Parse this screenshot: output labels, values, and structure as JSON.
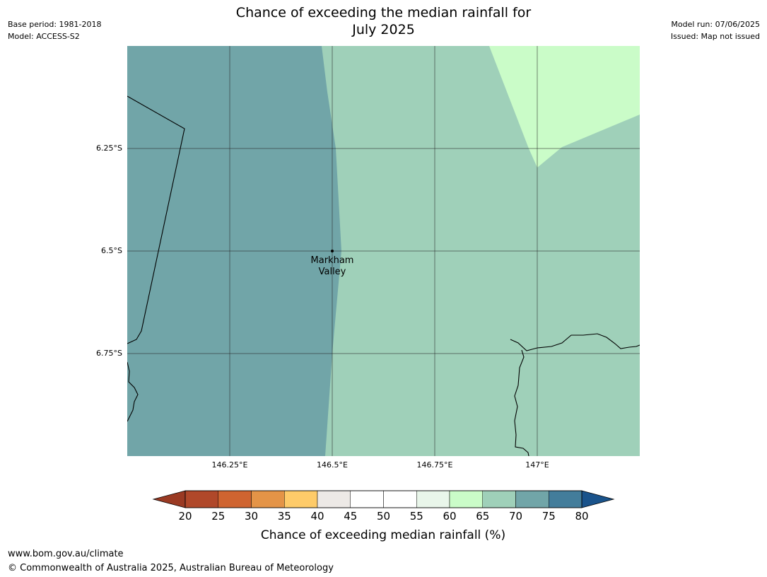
{
  "header": {
    "title_line1": "Chance of exceeding the median rainfall for",
    "title_line2": "July 2025",
    "base_period": "Base period: 1981-2018",
    "model": "Model: ACCESS-S2",
    "model_run": "Model run: 07/06/2025",
    "issued": "Issued: Map not issued"
  },
  "map": {
    "lat_labels": [
      "6.25°S",
      "6.5°S",
      "6.75°S"
    ],
    "lon_labels": [
      "146.25°E",
      "146.5°E",
      "146.75°E",
      "147°E"
    ],
    "place": {
      "name_line1": "Markham",
      "name_line2": "Valley"
    },
    "zone_colors": {
      "band_70_75": "#71a5a8",
      "band_65_70": "#9fd0b9",
      "band_60_65": "#cafcc8"
    }
  },
  "colorbar": {
    "label": "Chance of exceeding median rainfall (%)",
    "ticks": [
      "20",
      "25",
      "30",
      "35",
      "40",
      "45",
      "50",
      "55",
      "60",
      "65",
      "70",
      "75",
      "80"
    ],
    "colors": [
      "#b0482a",
      "#cf6430",
      "#e49447",
      "#fecb69",
      "#ede9e6",
      "#ffffff",
      "#ffffff",
      "#e9f6ea",
      "#cafcc8",
      "#9fd0b9",
      "#71a5a8",
      "#437d9b"
    ],
    "under_color": "#9a3a23",
    "over_color": "#1a538b"
  },
  "footer": {
    "url": "www.bom.gov.au/climate",
    "copyright": "© Commonwealth of Australia 2025, Australian Bureau of Meteorology"
  }
}
